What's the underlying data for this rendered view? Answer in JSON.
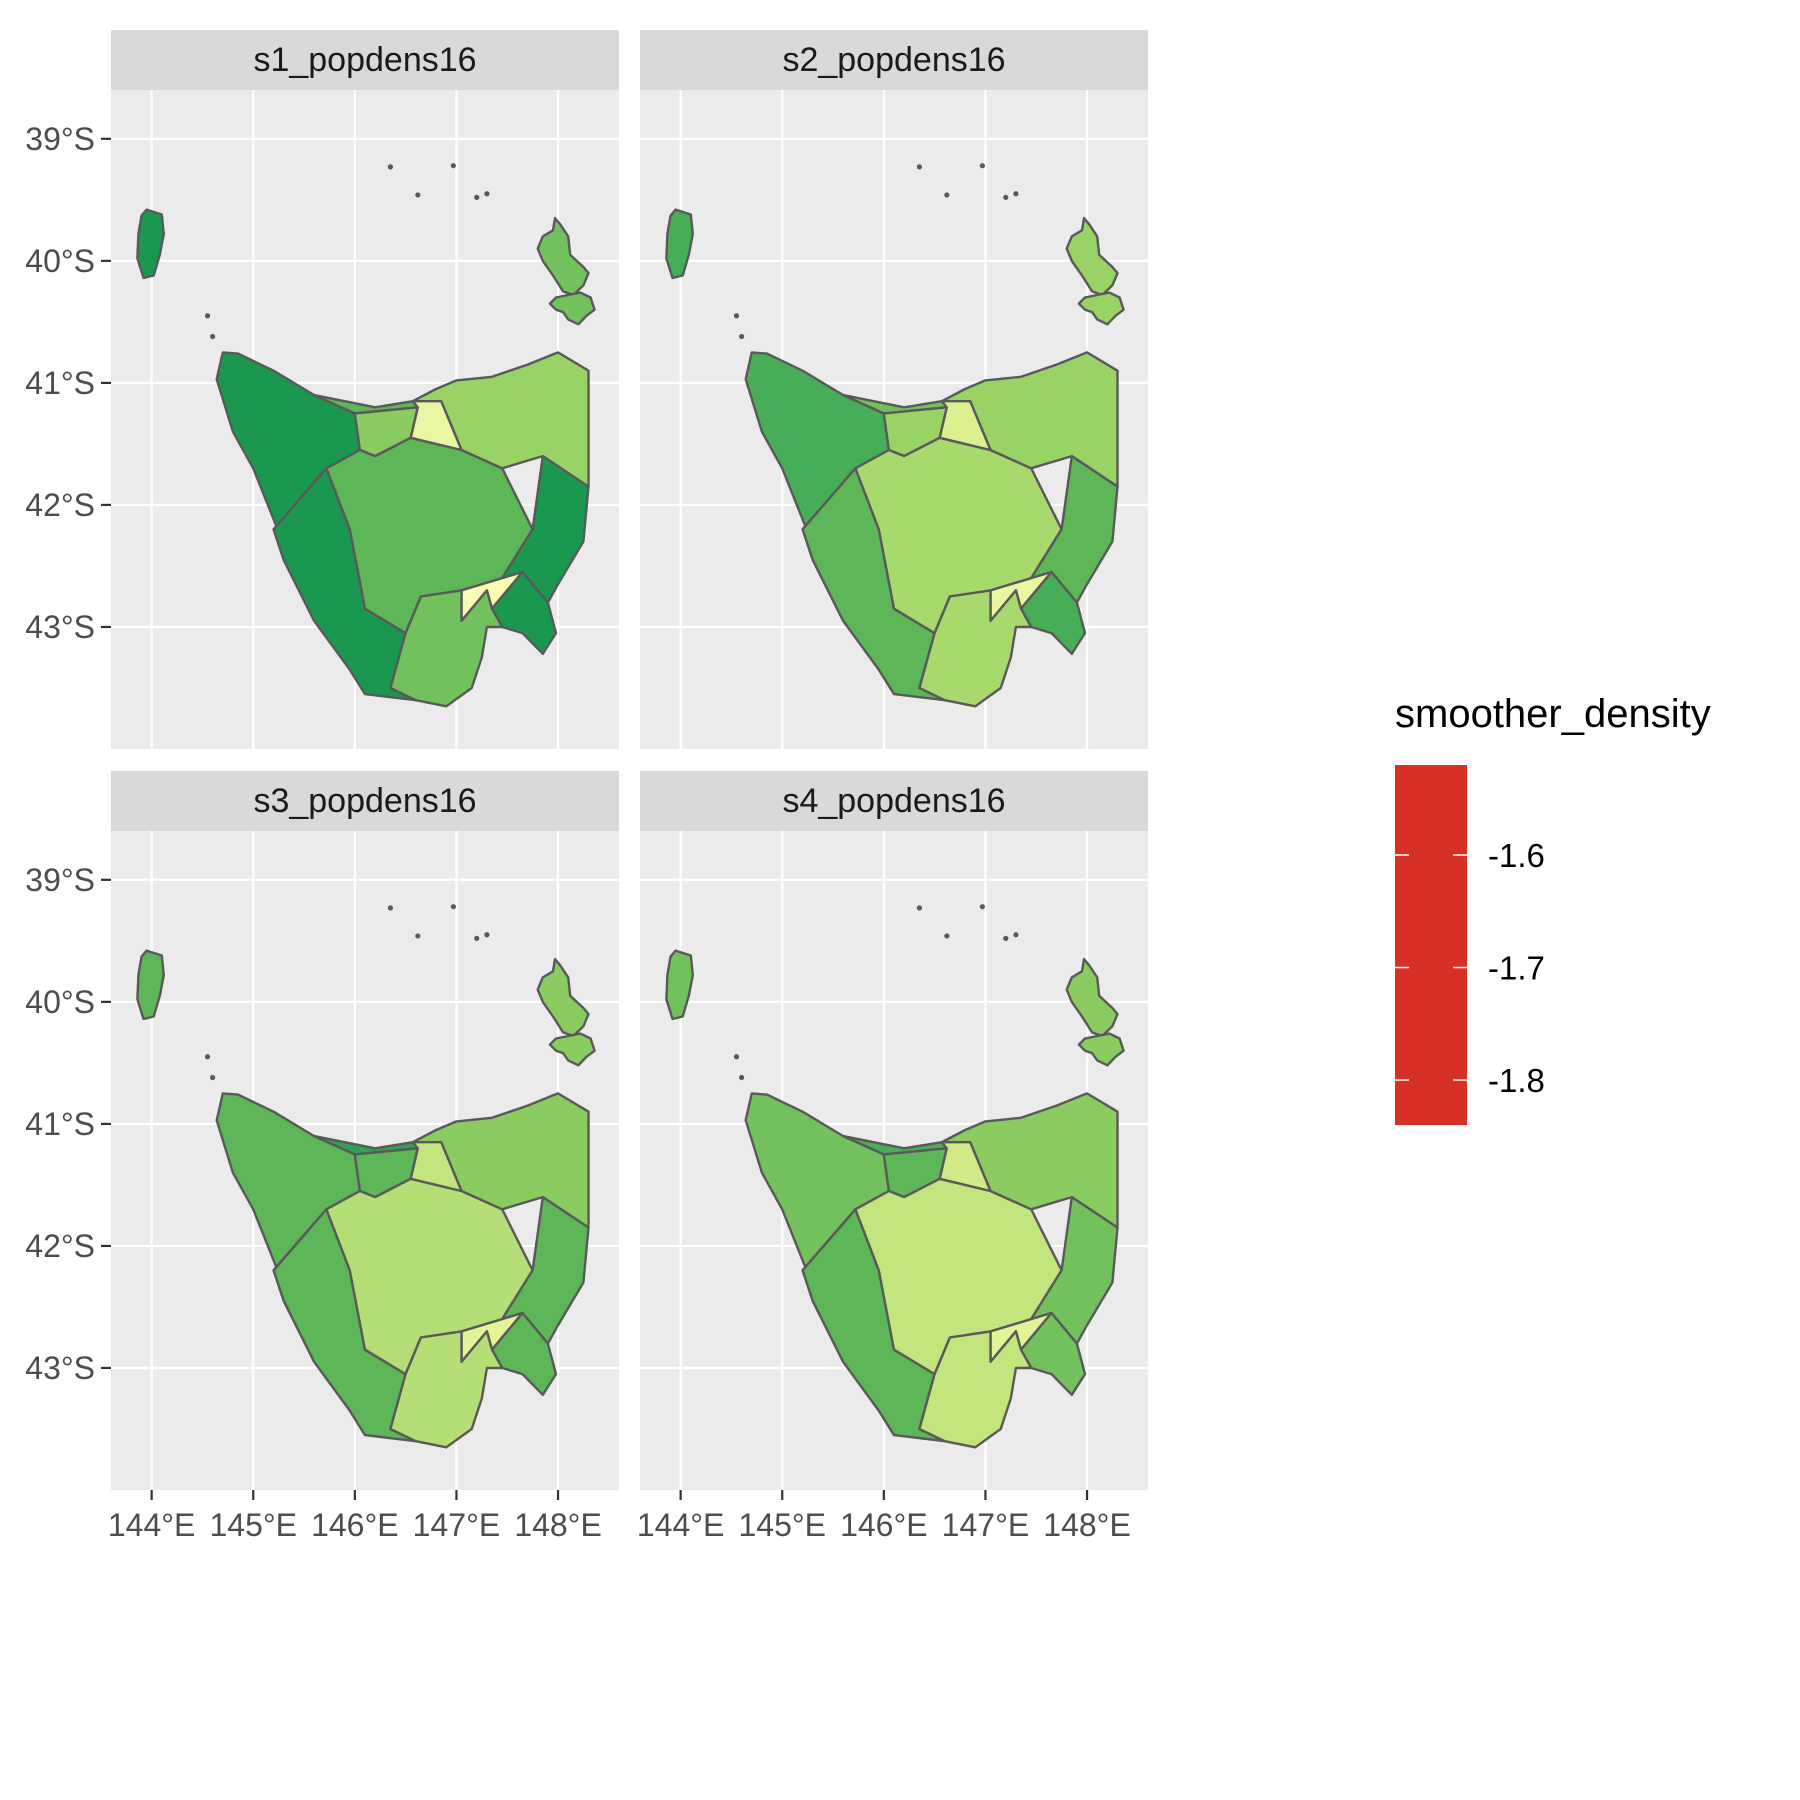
{
  "chart_data": {
    "type": "choropleth-map",
    "facet_field": "smoother_density",
    "facets": [
      {
        "label": "s1_popdens16"
      },
      {
        "label": "s2_popdens16"
      },
      {
        "label": "s3_popdens16"
      },
      {
        "label": "s4_popdens16"
      }
    ],
    "x_ticks": [
      144,
      145,
      146,
      147,
      148
    ],
    "x_tick_labels": [
      "144°E",
      "145°E",
      "146°E",
      "147°E",
      "148°E"
    ],
    "y_ticks": [
      -39,
      -40,
      -41,
      -42,
      -43
    ],
    "y_tick_labels": [
      "39°S",
      "40°S",
      "41°S",
      "42°S",
      "43°S"
    ],
    "xlim": [
      143.6,
      148.6
    ],
    "ylim": [
      -44.0,
      -38.6
    ],
    "grid": true,
    "legend": {
      "title": "smoother_density",
      "position": "right",
      "range": [
        -1.84,
        -1.52
      ],
      "breaks": [
        -1.6,
        -1.7,
        -1.8
      ],
      "break_labels": [
        "-1.6",
        "-1.7",
        "-1.8"
      ],
      "colors": [
        "#d73027",
        "#fc8d59",
        "#fee08b",
        "#ffffbf",
        "#d9ef8b",
        "#91cf60",
        "#1a9850"
      ]
    },
    "regions": [
      {
        "name": "king-island"
      },
      {
        "name": "flinders-island"
      },
      {
        "name": "cape-barren-island"
      },
      {
        "name": "west-coast"
      },
      {
        "name": "south-west"
      },
      {
        "name": "north-west-a"
      },
      {
        "name": "north-west-b"
      },
      {
        "name": "central"
      },
      {
        "name": "north-east"
      },
      {
        "name": "launceston"
      },
      {
        "name": "east-coast"
      },
      {
        "name": "hobart"
      },
      {
        "name": "tasman-peninsula"
      },
      {
        "name": "huon"
      }
    ],
    "region_values": [
      [
        -1.84,
        -1.8,
        -1.8,
        -1.84,
        -1.84,
        -1.81,
        -1.79,
        -1.81,
        -1.78,
        -1.71,
        -1.84,
        -1.69,
        -1.84,
        -1.8
      ],
      [
        -1.82,
        -1.78,
        -1.78,
        -1.82,
        -1.81,
        -1.8,
        -1.78,
        -1.77,
        -1.78,
        -1.73,
        -1.81,
        -1.71,
        -1.82,
        -1.77
      ],
      [
        -1.81,
        -1.79,
        -1.79,
        -1.81,
        -1.81,
        -1.83,
        -1.81,
        -1.76,
        -1.79,
        -1.75,
        -1.81,
        -1.72,
        -1.81,
        -1.76
      ],
      [
        -1.8,
        -1.79,
        -1.79,
        -1.8,
        -1.81,
        -1.82,
        -1.81,
        -1.75,
        -1.79,
        -1.74,
        -1.8,
        -1.72,
        -1.8,
        -1.75
      ]
    ]
  }
}
